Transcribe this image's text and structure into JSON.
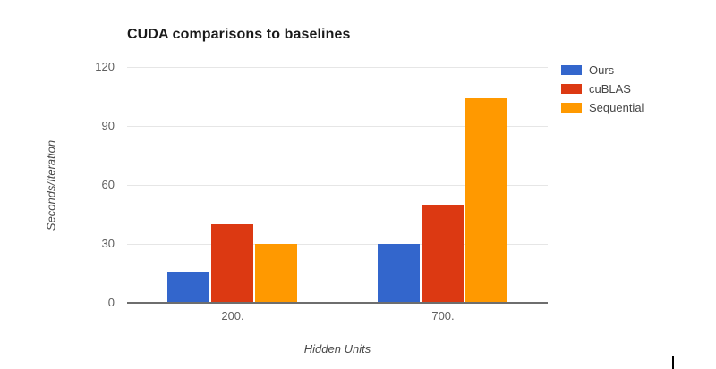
{
  "chart_data": {
    "type": "bar",
    "title": "CUDA comparisons to baselines",
    "xlabel": "Hidden Units",
    "ylabel": "Seconds/Iteration",
    "categories": [
      "200.",
      "700."
    ],
    "series": [
      {
        "name": "Ours",
        "color": "#3366CC",
        "values": [
          16,
          30
        ]
      },
      {
        "name": "cuBLAS",
        "color": "#DC3912",
        "values": [
          40,
          50
        ]
      },
      {
        "name": "Sequential",
        "color": "#FF9900",
        "values": [
          30,
          104
        ]
      }
    ],
    "ylim": [
      0,
      120
    ],
    "yticks": [
      0,
      30,
      60,
      90,
      120
    ],
    "grid": true,
    "legend_position": "right"
  },
  "colors": {
    "gridline": "#e6e6e6",
    "axis_line": "#6e6e6e",
    "tick_label": "#5f5f5f",
    "title_text": "#1a1a1a"
  }
}
